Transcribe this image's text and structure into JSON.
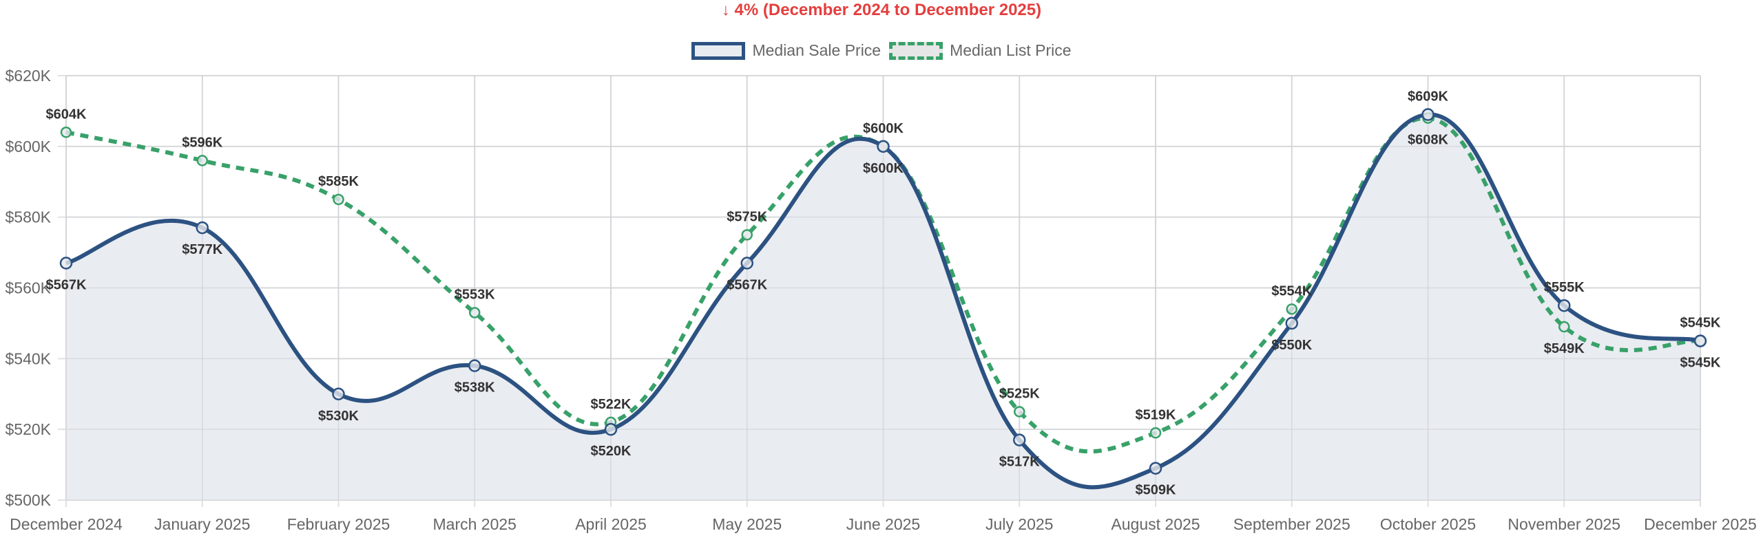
{
  "chart_data": {
    "type": "line",
    "title": "↓ 4% (December 2024 to December 2025)",
    "categories": [
      "December 2024",
      "January 2025",
      "February 2025",
      "March 2025",
      "April 2025",
      "May 2025",
      "June 2025",
      "July 2025",
      "August 2025",
      "September 2025",
      "October 2025",
      "November 2025",
      "December 2025"
    ],
    "series": [
      {
        "name": "Median Sale Price",
        "color": "#2c5282",
        "style": "solid",
        "fill": "#e8ebf0",
        "values": [
          567,
          577,
          530,
          538,
          520,
          567,
          600,
          517,
          509,
          550,
          609,
          555,
          545
        ]
      },
      {
        "name": "Median List Price",
        "color": "#38a169",
        "style": "dashed",
        "values": [
          604,
          596,
          585,
          553,
          522,
          575,
          600,
          525,
          519,
          554,
          608,
          549,
          545
        ]
      }
    ],
    "unit": "$K",
    "ylim": [
      500,
      620
    ],
    "yticks": [
      "$500K",
      "$520K",
      "$540K",
      "$560K",
      "$580K",
      "$600K",
      "$620K"
    ],
    "grid": true,
    "legend": "top",
    "title_color": "#e53e3e"
  }
}
